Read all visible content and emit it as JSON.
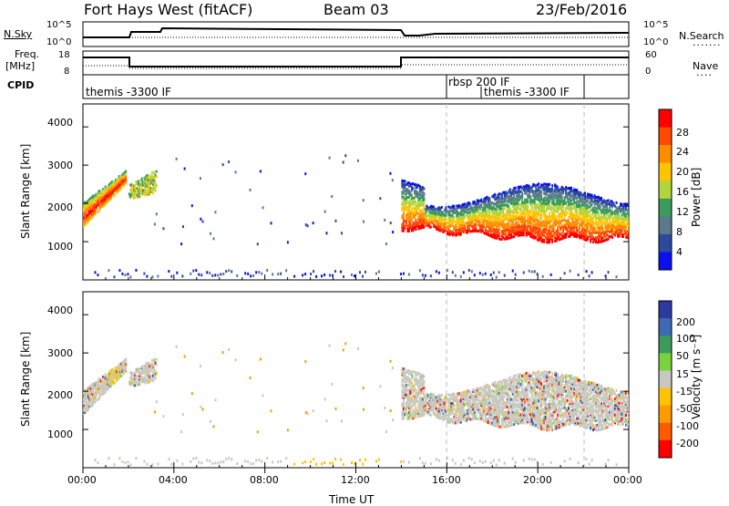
{
  "header": {
    "title": "Fort Hays West (fitACF)",
    "beam": "Beam 03",
    "date": "23/Feb/2016"
  },
  "panels": {
    "nsky_label": "N.Sky",
    "nsky_ticks": [
      "10^5",
      "10^0"
    ],
    "nsearch_label": "N.Search",
    "nsearch_ticks": [
      "10^5",
      "10^0"
    ],
    "freq_label": "Freq.",
    "freq_unit": "[MHz]",
    "freq_ticks": [
      "18",
      "8"
    ],
    "nave_label": "Nave",
    "nave_ticks": [
      "60",
      "0"
    ],
    "cpid_label": "CPID",
    "cpid_segments": [
      {
        "text": "themis -3300 IF",
        "start_hour": 0.0
      },
      {
        "text": "rbsp 200 IF",
        "start_hour": 16.0
      },
      {
        "text": "themis -3300 IF",
        "start_hour": 17.2
      }
    ]
  },
  "power_scale": {
    "label": "Power [dB]",
    "ticks": [
      "28",
      "24",
      "20",
      "16",
      "12",
      "8",
      "4"
    ],
    "colors": [
      "#ff0000",
      "#ff4a00",
      "#ff8c00",
      "#ffc400",
      "#b4d43c",
      "#3c9a5a",
      "#5a7a8c",
      "#2a4aa0",
      "#0a10f0"
    ]
  },
  "velocity_scale": {
    "label": "Velocity [m s⁻¹]",
    "ticks": [
      "200",
      "100",
      "50",
      "15",
      "-15",
      "-50",
      "-100",
      "-200"
    ],
    "colors": [
      "#2a3aa0",
      "#3c6ab4",
      "#3c9a5a",
      "#7ad23c",
      "#c8c8c0",
      "#ffc400",
      "#ff9a00",
      "#ff5a00",
      "#ff0000"
    ]
  },
  "chart_data": {
    "type": "heatmap",
    "title": "Fort Hays West (fitACF)",
    "xlabel": "Time UT",
    "ylabel": "Slant Range [km]",
    "xlim_hours": [
      0,
      24
    ],
    "ylim_km": [
      0,
      4600
    ],
    "x_ticks": [
      "00:00",
      "04:00",
      "08:00",
      "12:00",
      "16:00",
      "20:00",
      "00:00"
    ],
    "y_ticks": [
      1000,
      2000,
      3000,
      4000
    ],
    "scatter_bands": [
      {
        "t0": 0.0,
        "t1": 1.9,
        "r_lo": 1400,
        "r_hi": 2900,
        "note": "rising echo arc"
      },
      {
        "t0": 2.0,
        "t1": 3.2,
        "r_lo": 2100,
        "r_hi": 2900
      },
      {
        "t0": 14.0,
        "t1": 24.0,
        "r_lo": 1000,
        "r_hi": 2800
      }
    ]
  }
}
